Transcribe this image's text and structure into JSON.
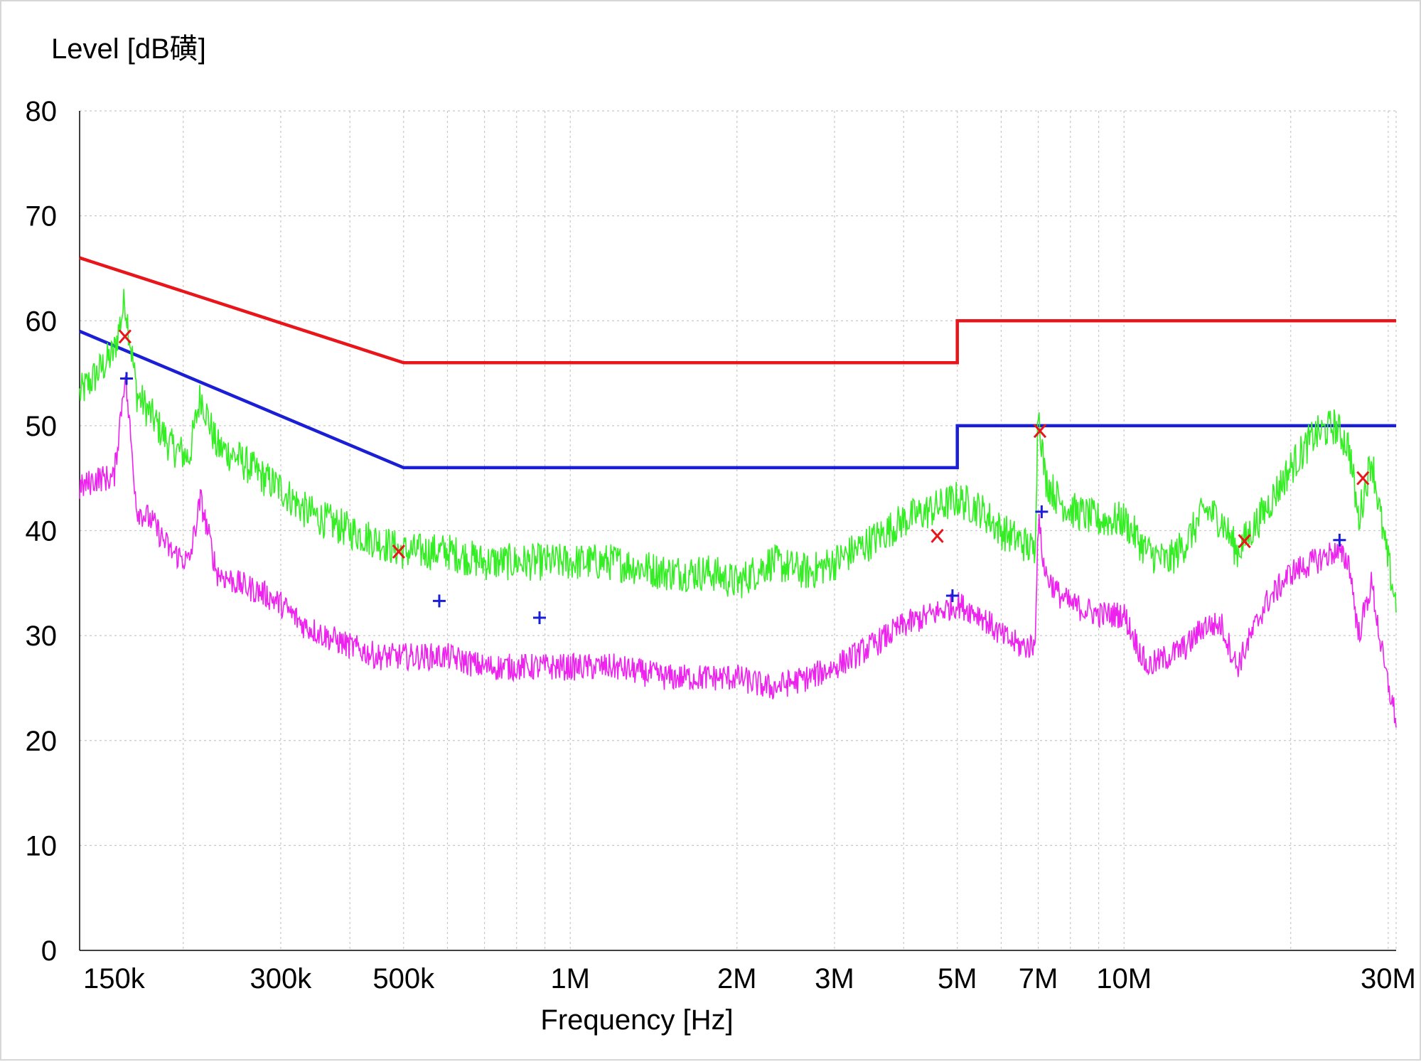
{
  "chart_data": {
    "type": "line",
    "title": "",
    "ylabel": "Level [dB磺]",
    "xlabel": "Frequency [Hz]",
    "x_scale": "log",
    "xlim": [
      130000,
      31000000
    ],
    "ylim": [
      0,
      80
    ],
    "grid": true,
    "yticks": [
      0,
      10,
      20,
      30,
      40,
      50,
      60,
      70,
      80
    ],
    "xticks": [
      {
        "value": 150000,
        "label": "150k"
      },
      {
        "value": 300000,
        "label": "300k"
      },
      {
        "value": 500000,
        "label": "500k"
      },
      {
        "value": 1000000,
        "label": "1M"
      },
      {
        "value": 2000000,
        "label": "2M"
      },
      {
        "value": 3000000,
        "label": "3M"
      },
      {
        "value": 5000000,
        "label": "5M"
      },
      {
        "value": 7000000,
        "label": "7M"
      },
      {
        "value": 10000000,
        "label": "10M"
      },
      {
        "value": 30000000,
        "label": "30M"
      }
    ],
    "series": [
      {
        "kind": "limit",
        "color": "#e8151b",
        "x": [
          130000,
          500000,
          500000,
          5000000,
          5000000,
          31000000
        ],
        "y": [
          66,
          56,
          56,
          56,
          60,
          60
        ]
      },
      {
        "kind": "limit",
        "color": "#1a1fd6",
        "x": [
          130000,
          500000,
          500000,
          5000000,
          5000000,
          31000000
        ],
        "y": [
          59,
          46,
          46,
          46,
          50,
          50
        ]
      },
      {
        "kind": "trace",
        "color": "#33ee22",
        "x": [
          130000,
          140000,
          150000,
          157000,
          165000,
          175000,
          190000,
          205000,
          215000,
          230000,
          250000,
          280000,
          300000,
          330000,
          360000,
          400000,
          450000,
          500000,
          600000,
          700000,
          800000,
          900000,
          1000000,
          1200000,
          1500000,
          1800000,
          2000000,
          2300000,
          2700000,
          3000000,
          3500000,
          4000000,
          4500000,
          5000000,
          5500000,
          6000000,
          6500000,
          6900000,
          7000000,
          7200000,
          7600000,
          8000000,
          9000000,
          10000000,
          11000000,
          12000000,
          13000000,
          14000000,
          15000000,
          16000000,
          18000000,
          20000000,
          22000000,
          24000000,
          25500000,
          26500000,
          28000000,
          29500000,
          31000000
        ],
        "y": [
          53,
          55,
          57,
          62,
          53,
          51,
          48,
          47,
          53,
          48,
          47,
          45,
          44,
          42,
          41,
          40,
          39,
          38,
          38,
          37,
          37,
          37,
          37,
          37,
          36,
          36,
          35,
          37,
          36,
          37,
          39,
          41,
          42,
          43,
          42,
          40,
          39,
          38,
          52,
          45,
          43,
          42,
          41,
          41,
          38,
          37,
          39,
          42,
          41,
          38,
          42,
          46,
          49,
          50,
          48,
          41,
          47,
          39,
          33
        ]
      },
      {
        "kind": "trace",
        "color": "#ee22ee",
        "x": [
          130000,
          140000,
          150000,
          157000,
          165000,
          175000,
          190000,
          205000,
          215000,
          230000,
          250000,
          280000,
          300000,
          330000,
          360000,
          400000,
          450000,
          500000,
          600000,
          700000,
          800000,
          900000,
          1000000,
          1200000,
          1500000,
          1800000,
          2000000,
          2300000,
          2700000,
          3000000,
          3500000,
          4000000,
          4500000,
          5000000,
          5500000,
          6000000,
          6500000,
          6900000,
          7000000,
          7200000,
          7600000,
          8000000,
          9000000,
          10000000,
          11000000,
          12000000,
          13000000,
          14000000,
          15000000,
          16000000,
          18000000,
          20000000,
          22000000,
          24000000,
          25500000,
          26500000,
          28000000,
          29500000,
          31000000
        ],
        "y": [
          44,
          45,
          45,
          55,
          42,
          41,
          38,
          37,
          43,
          36,
          35,
          34,
          33,
          31,
          30,
          29,
          28,
          28,
          28,
          27,
          27,
          27,
          27,
          27,
          26,
          26,
          26,
          25,
          26,
          27,
          29,
          31,
          32,
          33,
          32,
          30,
          29,
          29,
          41,
          36,
          34,
          33,
          32,
          32,
          27,
          28,
          29,
          31,
          31,
          27,
          33,
          36,
          37,
          38,
          37,
          30,
          35,
          27,
          22
        ]
      },
      {
        "kind": "markers",
        "marker": "x",
        "color": "#e8151b",
        "x": [
          157000,
          490000,
          4600000,
          7050000,
          16500000,
          27000000
        ],
        "y": [
          58.5,
          38,
          39.5,
          49.5,
          39,
          45
        ]
      },
      {
        "kind": "markers",
        "marker": "+",
        "color": "#1a1fd6",
        "x": [
          158000,
          580000,
          880000,
          4900000,
          7100000,
          24500000
        ],
        "y": [
          54.5,
          33.3,
          31.7,
          33.8,
          41.8,
          39.1
        ]
      }
    ]
  }
}
